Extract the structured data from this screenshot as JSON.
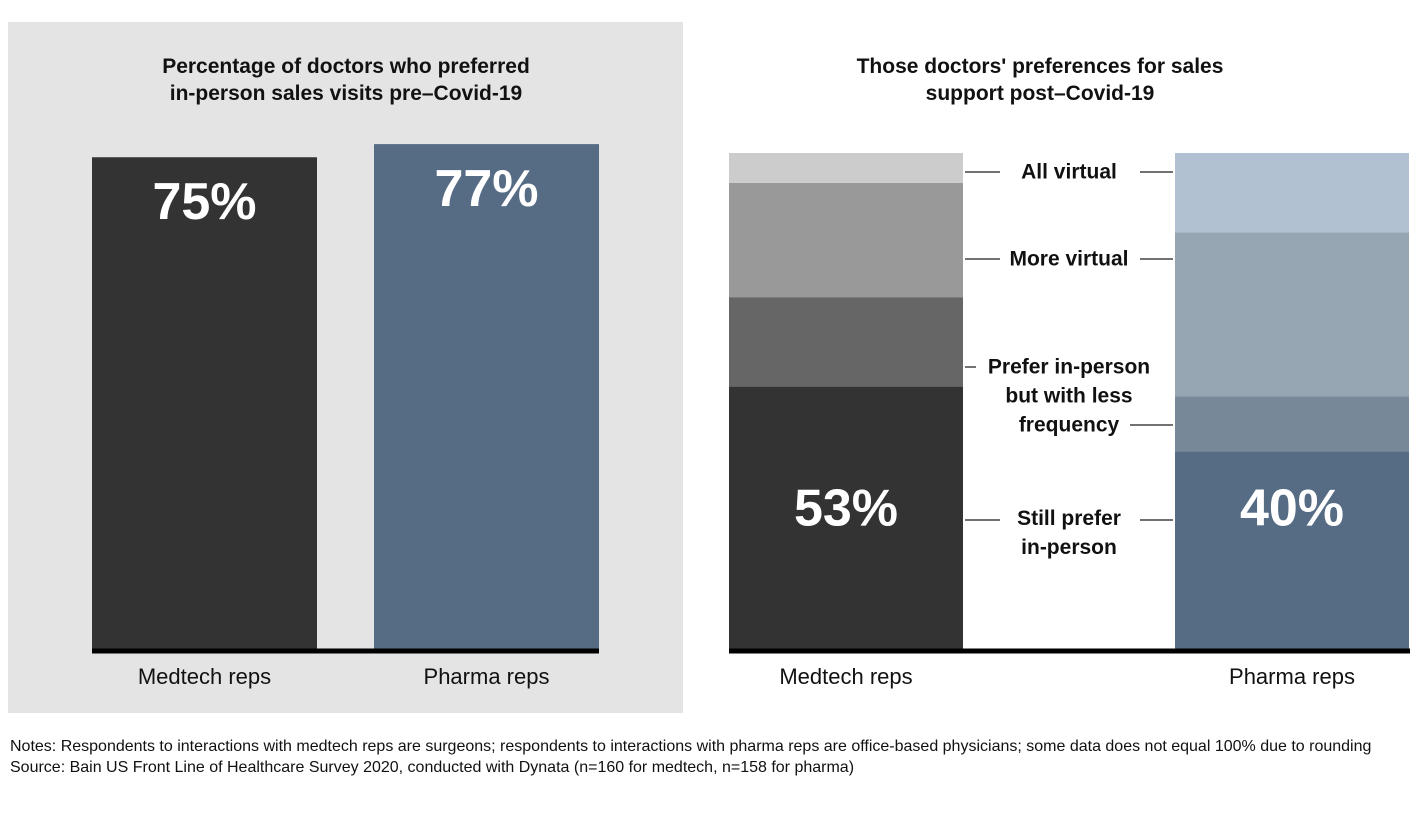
{
  "chart_data": [
    {
      "type": "bar",
      "title": "Percentage of doctors who preferred\nin-person sales visits pre–Covid-19",
      "categories": [
        "Medtech reps",
        "Pharma reps"
      ],
      "values": [
        75,
        77
      ],
      "value_labels": [
        "75%",
        "77%"
      ],
      "colors": [
        "#333333",
        "#566c84"
      ]
    },
    {
      "type": "stacked-bar",
      "title": "Those doctors' preferences for sales\nsupport post–Covid-19",
      "categories": [
        "Medtech reps",
        "Pharma reps"
      ],
      "series": [
        {
          "name": "Still prefer\nin-person",
          "colors": [
            "#333333",
            "#566c84"
          ],
          "values": [
            53,
            40
          ],
          "value_labels": [
            "53%",
            "40%"
          ]
        },
        {
          "name": "Prefer in-person\nbut with less\nfrequency",
          "colors": [
            "#666666",
            "#778899"
          ],
          "values": [
            18,
            11
          ]
        },
        {
          "name": "More virtual",
          "colors": [
            "#999999",
            "#97a6b3"
          ],
          "values": [
            23,
            33
          ]
        },
        {
          "name": "All virtual",
          "colors": [
            "#cccccc",
            "#b1c1d2"
          ],
          "values": [
            6,
            16
          ]
        }
      ]
    }
  ],
  "notes": "Notes: Respondents to interactions with medtech reps are surgeons; respondents to interactions with pharma reps are office-based physicians; some data does not equal 100% due to rounding",
  "source": "Source: Bain US Front Line of Healthcare Survey 2020, conducted with Dynata (n=160 for medtech, n=158 for pharma)"
}
